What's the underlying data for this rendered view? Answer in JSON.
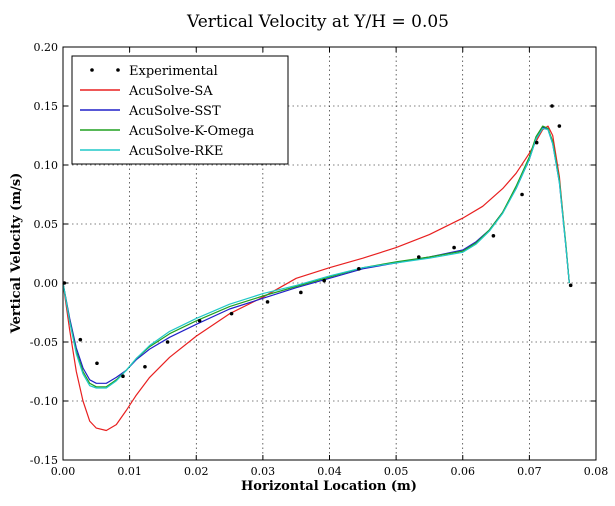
{
  "chart_data": {
    "type": "line",
    "title": "Vertical Velocity at Y/H = 0.05",
    "xlabel": "Horizontal Location (m)",
    "ylabel": "Vertical Velocity (m/s)",
    "xlim": [
      0.0,
      0.08
    ],
    "ylim": [
      -0.15,
      0.2
    ],
    "xticks": [
      0.0,
      0.01,
      0.02,
      0.03,
      0.04,
      0.05,
      0.06,
      0.07,
      0.08
    ],
    "xtick_labels": [
      "0.00",
      "0.01",
      "0.02",
      "0.03",
      "0.04",
      "0.05",
      "0.06",
      "0.07",
      "0.08"
    ],
    "yticks": [
      -0.15,
      -0.1,
      -0.05,
      0.0,
      0.05,
      0.1,
      0.15,
      0.2
    ],
    "ytick_labels": [
      "-0.15",
      "-0.10",
      "-0.05",
      "0.00",
      "0.05",
      "0.10",
      "0.15",
      "0.20"
    ],
    "grid": true,
    "legend_position": "top-left",
    "series": [
      {
        "name": "Experimental",
        "kind": "scatter",
        "color": "#000000",
        "x": [
          0.0002,
          0.0026,
          0.0051,
          0.009,
          0.0123,
          0.0157,
          0.0205,
          0.0253,
          0.0307,
          0.0357,
          0.0392,
          0.0444,
          0.0534,
          0.0587,
          0.0646,
          0.0689,
          0.0711,
          0.0734,
          0.0745,
          0.0762
        ],
        "y": [
          0.0,
          -0.048,
          -0.068,
          -0.079,
          -0.071,
          -0.05,
          -0.032,
          -0.026,
          -0.016,
          -0.008,
          0.002,
          0.012,
          0.022,
          0.03,
          0.04,
          0.075,
          0.119,
          0.15,
          0.133,
          -0.002
        ]
      },
      {
        "name": "AcuSolve-SA",
        "kind": "line",
        "color": "#e82020",
        "x": [
          0.0,
          0.001,
          0.002,
          0.003,
          0.004,
          0.005,
          0.0065,
          0.008,
          0.0095,
          0.011,
          0.013,
          0.016,
          0.02,
          0.025,
          0.03,
          0.035,
          0.04,
          0.045,
          0.05,
          0.055,
          0.06,
          0.063,
          0.066,
          0.068,
          0.07,
          0.071,
          0.072,
          0.0728,
          0.0735,
          0.0745,
          0.0755,
          0.076
        ],
        "y": [
          0.0,
          -0.04,
          -0.075,
          -0.1,
          -0.117,
          -0.123,
          -0.125,
          -0.12,
          -0.108,
          -0.095,
          -0.08,
          -0.063,
          -0.045,
          -0.026,
          -0.012,
          0.004,
          0.013,
          0.021,
          0.03,
          0.041,
          0.055,
          0.065,
          0.08,
          0.093,
          0.11,
          0.12,
          0.13,
          0.133,
          0.125,
          0.09,
          0.03,
          0.0
        ]
      },
      {
        "name": "AcuSolve-SST",
        "kind": "line",
        "color": "#2020c8",
        "x": [
          0.0,
          0.001,
          0.002,
          0.003,
          0.004,
          0.005,
          0.0065,
          0.008,
          0.0095,
          0.011,
          0.013,
          0.016,
          0.02,
          0.025,
          0.03,
          0.035,
          0.04,
          0.045,
          0.05,
          0.055,
          0.06,
          0.062,
          0.064,
          0.066,
          0.068,
          0.07,
          0.071,
          0.072,
          0.0728,
          0.0735,
          0.0745,
          0.0755,
          0.076
        ],
        "y": [
          0.0,
          -0.03,
          -0.055,
          -0.072,
          -0.082,
          -0.085,
          -0.085,
          -0.08,
          -0.074,
          -0.065,
          -0.056,
          -0.046,
          -0.035,
          -0.022,
          -0.013,
          -0.004,
          0.004,
          0.012,
          0.017,
          0.022,
          0.028,
          0.035,
          0.045,
          0.06,
          0.08,
          0.105,
          0.122,
          0.132,
          0.13,
          0.118,
          0.085,
          0.03,
          0.0
        ]
      },
      {
        "name": "AcuSolve-K-Omega",
        "kind": "line",
        "color": "#20a020",
        "x": [
          0.0,
          0.001,
          0.002,
          0.003,
          0.004,
          0.005,
          0.0065,
          0.008,
          0.0095,
          0.011,
          0.013,
          0.016,
          0.02,
          0.025,
          0.03,
          0.035,
          0.04,
          0.045,
          0.05,
          0.055,
          0.06,
          0.062,
          0.064,
          0.066,
          0.068,
          0.07,
          0.071,
          0.072,
          0.0728,
          0.0735,
          0.0745,
          0.0755,
          0.076
        ],
        "y": [
          0.0,
          -0.032,
          -0.058,
          -0.075,
          -0.085,
          -0.088,
          -0.088,
          -0.082,
          -0.074,
          -0.064,
          -0.054,
          -0.043,
          -0.032,
          -0.02,
          -0.011,
          -0.003,
          0.005,
          0.013,
          0.018,
          0.022,
          0.027,
          0.034,
          0.045,
          0.06,
          0.082,
          0.107,
          0.124,
          0.133,
          0.131,
          0.12,
          0.087,
          0.032,
          0.0
        ]
      },
      {
        "name": "AcuSolve-RKE",
        "kind": "line",
        "color": "#20c8c8",
        "x": [
          0.0,
          0.001,
          0.002,
          0.003,
          0.004,
          0.005,
          0.0065,
          0.008,
          0.0095,
          0.011,
          0.013,
          0.016,
          0.02,
          0.025,
          0.03,
          0.035,
          0.04,
          0.045,
          0.05,
          0.055,
          0.06,
          0.062,
          0.064,
          0.066,
          0.068,
          0.07,
          0.071,
          0.072,
          0.0728,
          0.0735,
          0.0745,
          0.0755,
          0.076
        ],
        "y": [
          0.0,
          -0.033,
          -0.06,
          -0.077,
          -0.087,
          -0.089,
          -0.089,
          -0.083,
          -0.074,
          -0.064,
          -0.053,
          -0.041,
          -0.03,
          -0.018,
          -0.009,
          -0.002,
          0.006,
          0.013,
          0.017,
          0.021,
          0.026,
          0.033,
          0.044,
          0.059,
          0.08,
          0.105,
          0.122,
          0.131,
          0.13,
          0.118,
          0.085,
          0.03,
          0.0
        ]
      }
    ]
  }
}
